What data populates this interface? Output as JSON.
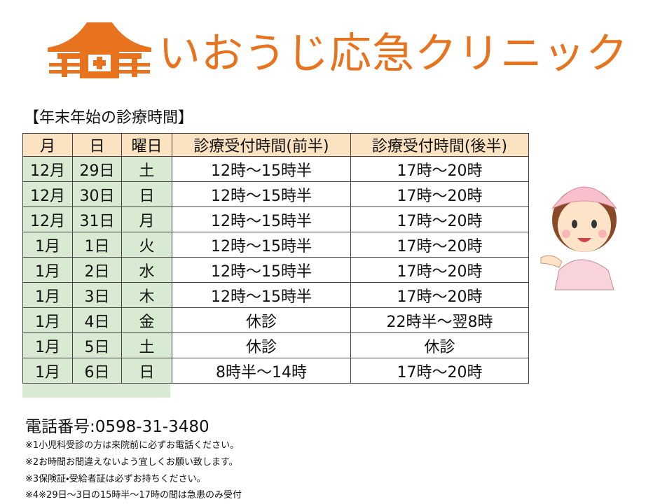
{
  "header": {
    "title": "いおうじ応急クリニック"
  },
  "section_title": "【年末年始の診療時間】",
  "table": {
    "headers": [
      "月",
      "日",
      "曜日",
      "診療受付時間(前半)",
      "診療受付時間(後半)"
    ],
    "rows": [
      [
        "12月",
        "29日",
        "土",
        "12時～15時半",
        "17時～20時"
      ],
      [
        "12月",
        "30日",
        "日",
        "12時～15時半",
        "17時～20時"
      ],
      [
        "12月",
        "31日",
        "月",
        "12時～15時半",
        "17時～20時"
      ],
      [
        "1月",
        "1日",
        "火",
        "12時～15時半",
        "17時～20時"
      ],
      [
        "1月",
        "2日",
        "水",
        "12時～15時半",
        "17時～20時"
      ],
      [
        "1月",
        "3日",
        "木",
        "12時～15時半",
        "17時～20時"
      ],
      [
        "1月",
        "4日",
        "金",
        "休診",
        "22時半～翌8時"
      ],
      [
        "1月",
        "5日",
        "土",
        "休診",
        "休診"
      ],
      [
        "1月",
        "6日",
        "日",
        "8時半～14時",
        "17時～20時"
      ]
    ]
  },
  "phone": "電話番号:0598-31-3480",
  "notes": [
    "※1小児科受診の方は来院前に必ずお電話ください。",
    "※2お時間お間違えないよう宜しくお願い致します。",
    "※3保険証・受給者証は必ずお持ちください。",
    "※4※29日～3日の15時半～17時の間は急患のみ受付"
  ]
}
